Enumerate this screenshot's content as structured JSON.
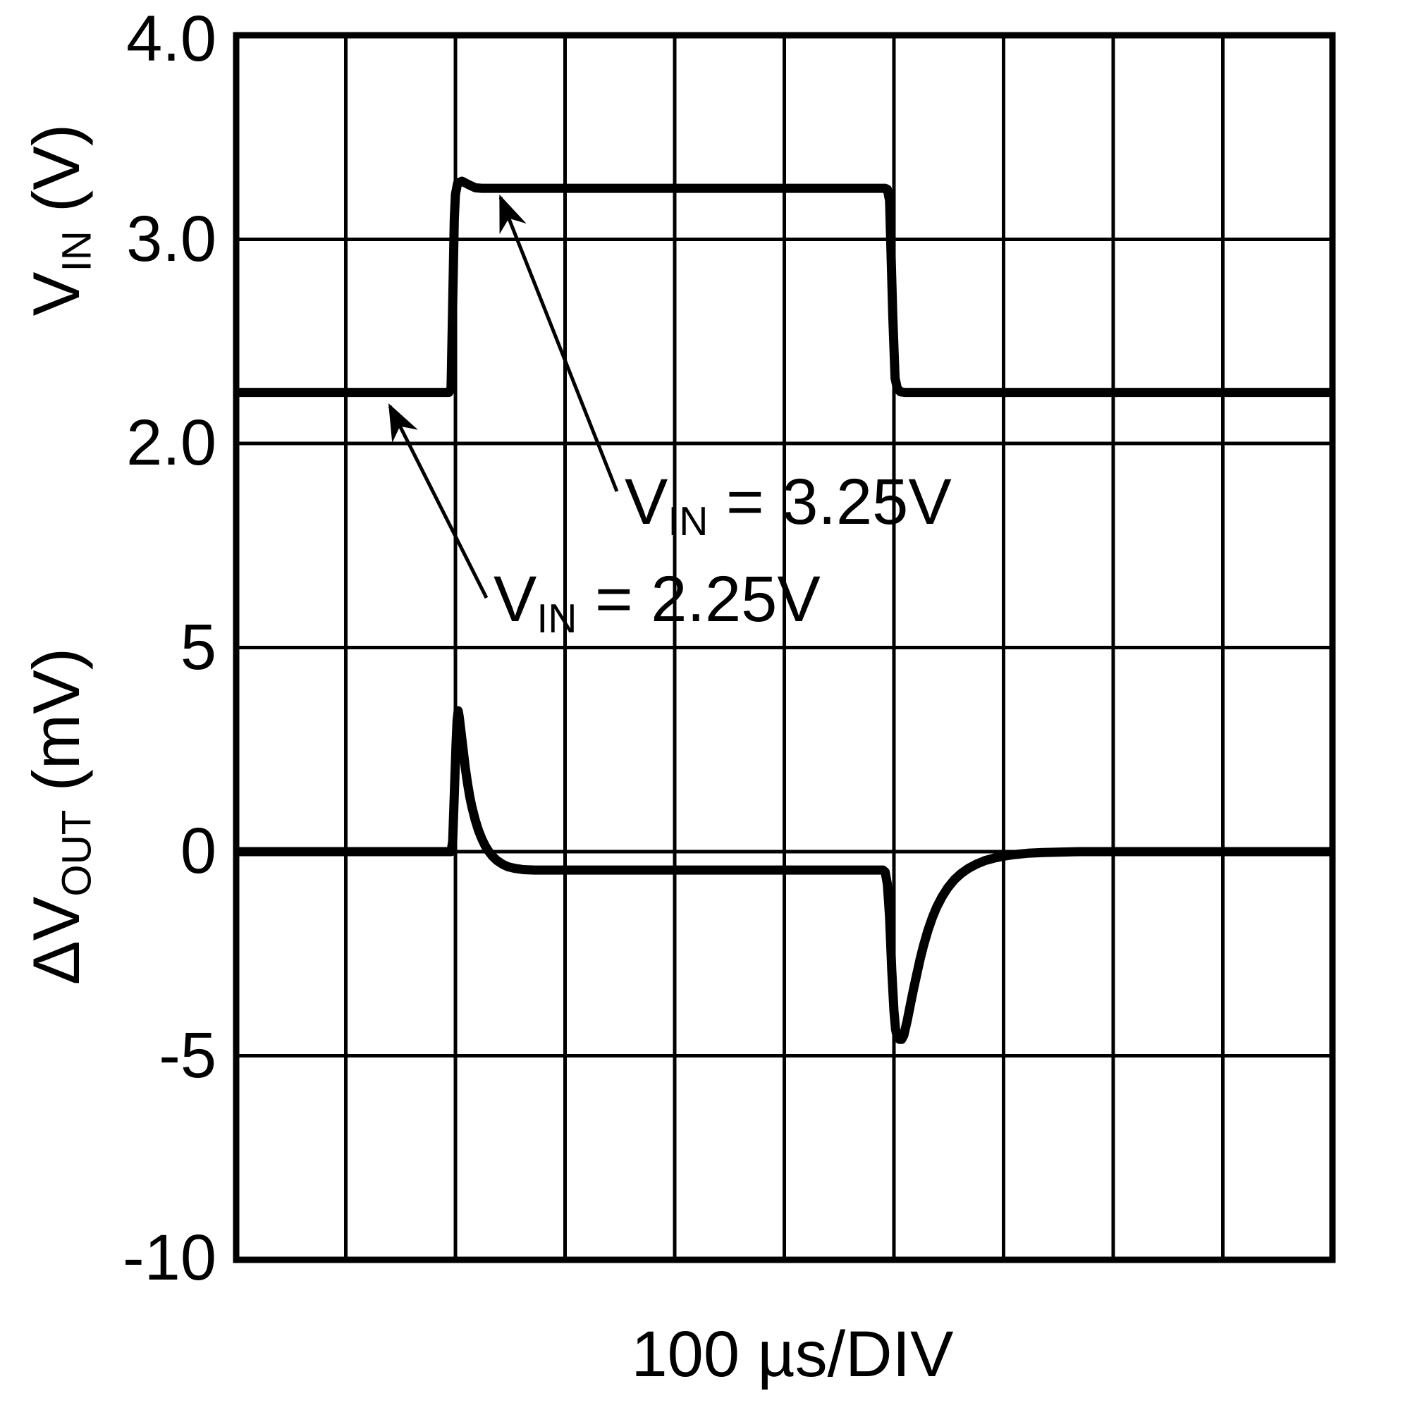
{
  "figure": {
    "x_axis_label": "100 µs/DIV",
    "vin_axis": {
      "label": {
        "pre": "V",
        "sub": "IN",
        "post": " (V)"
      },
      "ticks": [
        "4.0",
        "3.0",
        "2.0"
      ]
    },
    "dvout_axis": {
      "label": {
        "pre": "ΔV",
        "sub": "OUT",
        "post": " (mV)"
      },
      "ticks": [
        "5",
        "0",
        "-5",
        "-10"
      ]
    },
    "annotations": {
      "high": {
        "pre": "V",
        "sub": "IN",
        "post": " = 3.25V"
      },
      "low": {
        "pre": "V",
        "sub": "IN",
        "post": " = 2.25V"
      }
    },
    "colors": {
      "trace": "#000000",
      "grid": "#000000",
      "background": "#ffffff"
    }
  },
  "chart_data": {
    "type": "line",
    "xlabel": "100 µs/DIV",
    "x_units": "µs",
    "x_range": [
      0,
      1000
    ],
    "x_divisions": 10,
    "grid": "on",
    "legend": "none",
    "annotations": [
      "VIN = 3.25V",
      "VIN = 2.25V"
    ],
    "panels": [
      {
        "name": "VIN",
        "ylabel": "VIN (V)",
        "units": "V",
        "yticks": [
          4.0,
          3.0,
          2.0
        ],
        "description": "Input voltage square wave: 2.25V baseline, steps to 3.25V at 200µs, returns to 2.25V at 600µs",
        "series": [
          {
            "name": "VIN",
            "points": [
              [
                0,
                2.25
              ],
              [
                194,
                2.25
              ],
              [
                196,
                2.27
              ],
              [
                199,
                3.1
              ],
              [
                200,
                3.22
              ],
              [
                202,
                3.275
              ],
              [
                206,
                3.285
              ],
              [
                212,
                3.268
              ],
              [
                218,
                3.253
              ],
              [
                224,
                3.25
              ],
              [
                592,
                3.25
              ],
              [
                594,
                3.245
              ],
              [
                596,
                3.19
              ],
              [
                599,
                2.62
              ],
              [
                601,
                2.32
              ],
              [
                603,
                2.27
              ],
              [
                606,
                2.253
              ],
              [
                610,
                2.25
              ],
              [
                1000,
                2.25
              ]
            ]
          }
        ]
      },
      {
        "name": "dVOUT",
        "ylabel": "ΔVOUT (mV)",
        "units": "mV",
        "yticks": [
          5,
          0,
          -5,
          -10
        ],
        "description": "Output voltage deviation: +3.45mV spike at rising input edge settling to -0.45mV, -4.6mV dip at falling input edge recovering to 0mV",
        "series": [
          {
            "name": "dVOUT",
            "points": [
              [
                0,
                0
              ],
              [
                196,
                0
              ],
              [
                197.5,
                0.25
              ],
              [
                199,
                1.4
              ],
              [
                200.5,
                2.6
              ],
              [
                201.5,
                3.2
              ],
              [
                202.5,
                3.45
              ],
              [
                203.5,
                3.3
              ],
              [
                205,
                2.95
              ],
              [
                207,
                2.5
              ],
              [
                209,
                2.05
              ],
              [
                211,
                1.68
              ],
              [
                213,
                1.36
              ],
              [
                215,
                1.1
              ],
              [
                218,
                0.78
              ],
              [
                221,
                0.52
              ],
              [
                224,
                0.32
              ],
              [
                227,
                0.15
              ],
              [
                230,
                0.02
              ],
              [
                234,
                -0.12
              ],
              [
                238,
                -0.22
              ],
              [
                243,
                -0.31
              ],
              [
                248,
                -0.37
              ],
              [
                254,
                -0.41
              ],
              [
                262,
                -0.44
              ],
              [
                272,
                -0.45
              ],
              [
                590,
                -0.45
              ],
              [
                592,
                -0.5
              ],
              [
                594,
                -0.8
              ],
              [
                596,
                -1.6
              ],
              [
                598,
                -2.9
              ],
              [
                600,
                -3.9
              ],
              [
                601.5,
                -4.35
              ],
              [
                603,
                -4.55
              ],
              [
                605,
                -4.6
              ],
              [
                607,
                -4.6
              ],
              [
                609,
                -4.5
              ],
              [
                612,
                -4.15
              ],
              [
                615,
                -3.75
              ],
              [
                618,
                -3.35
              ],
              [
                621,
                -2.98
              ],
              [
                624,
                -2.62
              ],
              [
                627,
                -2.3
              ],
              [
                631,
                -1.93
              ],
              [
                635,
                -1.62
              ],
              [
                639,
                -1.36
              ],
              [
                644,
                -1.1
              ],
              [
                649,
                -0.89
              ],
              [
                655,
                -0.69
              ],
              [
                661,
                -0.54
              ],
              [
                668,
                -0.41
              ],
              [
                675,
                -0.31
              ],
              [
                683,
                -0.22
              ],
              [
                691,
                -0.16
              ],
              [
                700,
                -0.11
              ],
              [
                710,
                -0.07
              ],
              [
                722,
                -0.04
              ],
              [
                736,
                -0.02
              ],
              [
                752,
                -0.01
              ],
              [
                770,
                0
              ],
              [
                1000,
                0
              ]
            ]
          }
        ]
      }
    ]
  }
}
